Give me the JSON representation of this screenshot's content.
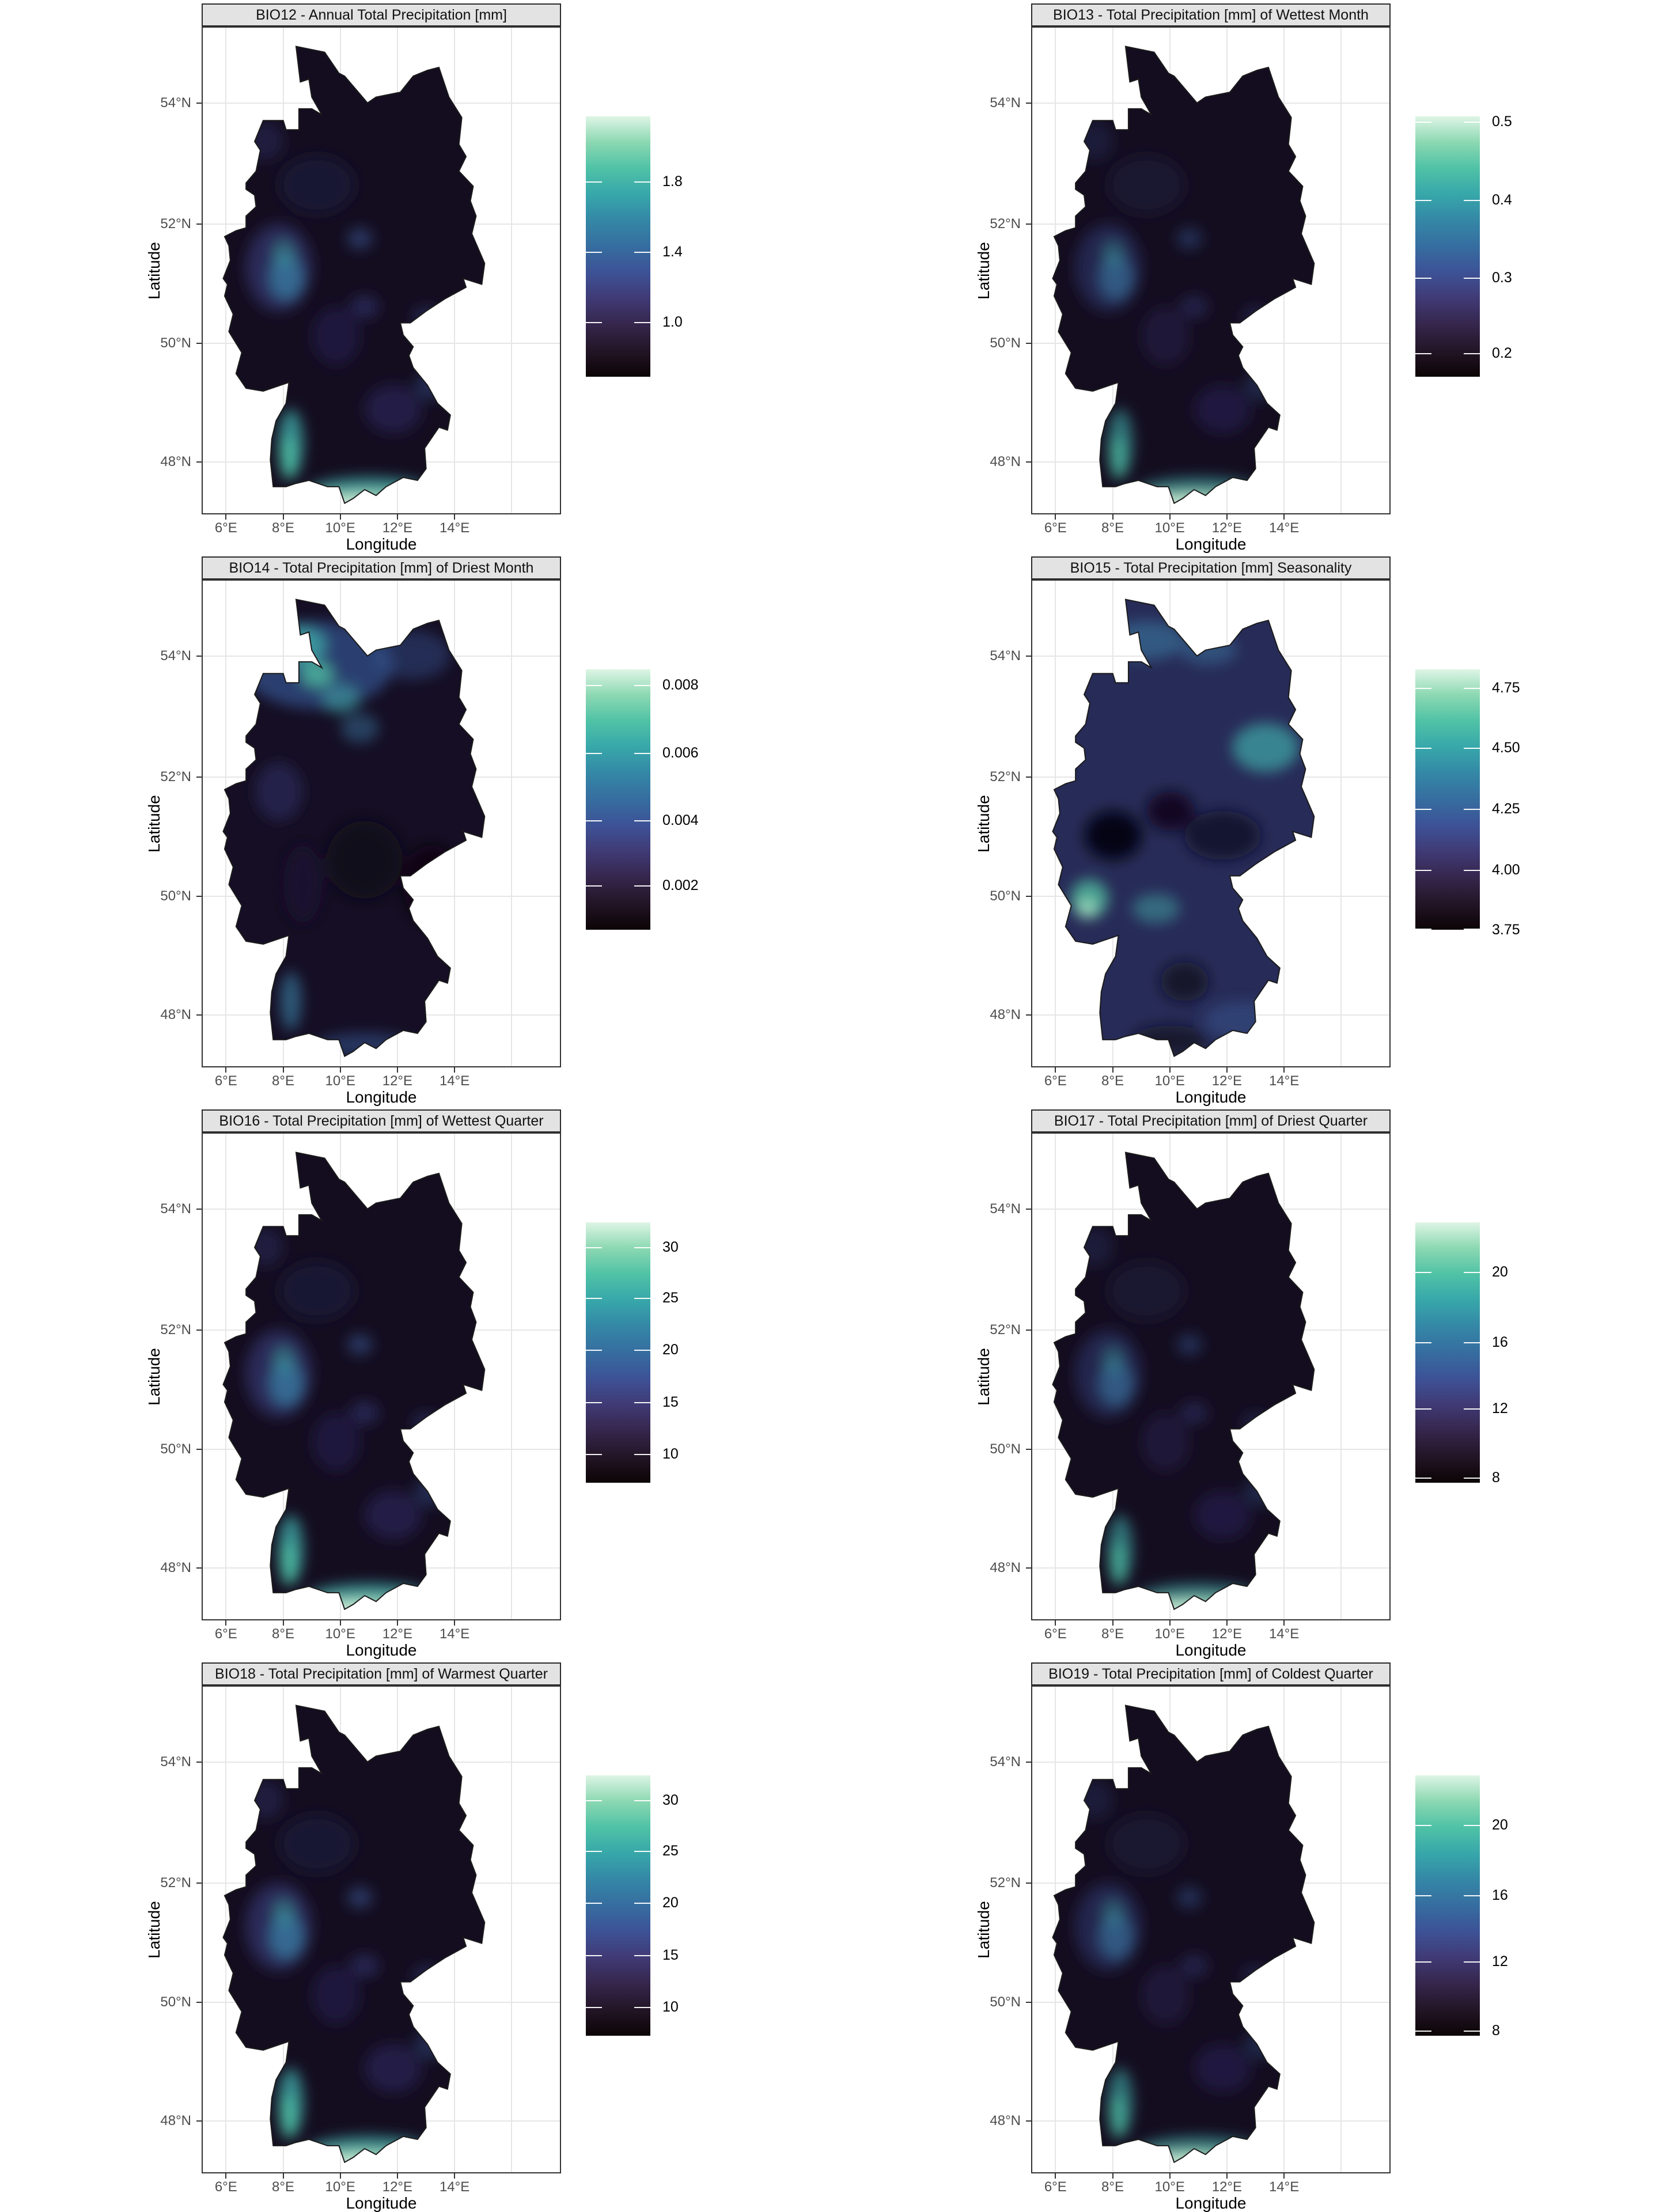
{
  "figure": {
    "background": "#ffffff",
    "strip_background": "#e3e3e3",
    "strip_border": "#2a2a2a",
    "panel_border": "#333333",
    "gridline_color": "#e6e6e6",
    "tick_text_color": "#4d4d4d",
    "axis_title_color": "#000000",
    "country_outline_color": "#1b1b1b",
    "colormap_name": "mako",
    "colormap_stops_top_to_bottom": [
      "#def5e5",
      "#8bd8b2",
      "#4fc2a6",
      "#37a7aa",
      "#3487a6",
      "#366da0",
      "#3d5296",
      "#403a75",
      "#35264c",
      "#231526",
      "#0b0405"
    ]
  },
  "axes": {
    "x": {
      "label": "Longitude",
      "ticks": [
        {
          "label": "6°E",
          "pos": 0.065
        },
        {
          "label": "8°E",
          "pos": 0.225
        },
        {
          "label": "10°E",
          "pos": 0.385
        },
        {
          "label": "12°E",
          "pos": 0.545
        },
        {
          "label": "14°E",
          "pos": 0.705
        }
      ],
      "extra_gridlines": [
        0.865
      ]
    },
    "y": {
      "label": "Latitude",
      "ticks": [
        {
          "label": "54°N",
          "pos": 0.155
        },
        {
          "label": "52°N",
          "pos": 0.405
        },
        {
          "label": "50°N",
          "pos": 0.65
        },
        {
          "label": "48°N",
          "pos": 0.895
        }
      ],
      "extra_gridlines": []
    }
  },
  "panels": [
    {
      "id": "BIO12",
      "title": "BIO12 - Annual Total Precipitation [mm]",
      "pattern": "south",
      "colorbar": {
        "ticks": [
          {
            "label": "1.8",
            "pos": 0.25
          },
          {
            "label": "1.4",
            "pos": 0.52
          },
          {
            "label": "1.0",
            "pos": 0.79
          }
        ]
      }
    },
    {
      "id": "BIO13",
      "title": "BIO13 - Total Precipitation [mm] of Wettest Month",
      "pattern": "south-dim",
      "colorbar": {
        "ticks": [
          {
            "label": "0.5",
            "pos": 0.02
          },
          {
            "label": "0.4",
            "pos": 0.32
          },
          {
            "label": "0.3",
            "pos": 0.62
          },
          {
            "label": "0.2",
            "pos": 0.91
          }
        ]
      }
    },
    {
      "id": "BIO14",
      "title": "BIO14 - Total Precipitation [mm] of Driest Month",
      "pattern": "north",
      "colorbar": {
        "ticks": [
          {
            "label": "0.008",
            "pos": 0.06
          },
          {
            "label": "0.006",
            "pos": 0.32
          },
          {
            "label": "0.004",
            "pos": 0.58
          },
          {
            "label": "0.002",
            "pos": 0.83
          }
        ]
      }
    },
    {
      "id": "BIO15",
      "title": "BIO15 - Total Precipitation [mm] Seasonality",
      "pattern": "season",
      "colorbar": {
        "ticks": [
          {
            "label": "4.75",
            "pos": 0.07
          },
          {
            "label": "4.50",
            "pos": 0.3
          },
          {
            "label": "4.25",
            "pos": 0.535
          },
          {
            "label": "4.00",
            "pos": 0.77
          },
          {
            "label": "3.75",
            "pos": 1.0
          }
        ]
      }
    },
    {
      "id": "BIO16",
      "title": "BIO16 - Total Precipitation [mm] of Wettest Quarter",
      "pattern": "south",
      "colorbar": {
        "ticks": [
          {
            "label": "30",
            "pos": 0.095
          },
          {
            "label": "25",
            "pos": 0.29
          },
          {
            "label": "20",
            "pos": 0.49
          },
          {
            "label": "15",
            "pos": 0.69
          },
          {
            "label": "10",
            "pos": 0.89
          }
        ]
      }
    },
    {
      "id": "BIO17",
      "title": "BIO17 - Total Precipitation [mm] of Driest Quarter",
      "pattern": "south-dim",
      "colorbar": {
        "ticks": [
          {
            "label": "20",
            "pos": 0.19
          },
          {
            "label": "16",
            "pos": 0.46
          },
          {
            "label": "12",
            "pos": 0.715
          },
          {
            "label": "8",
            "pos": 0.98
          }
        ]
      }
    },
    {
      "id": "BIO18",
      "title": "BIO18 - Total Precipitation [mm] of Warmest Quarter",
      "pattern": "south",
      "colorbar": {
        "ticks": [
          {
            "label": "30",
            "pos": 0.095
          },
          {
            "label": "25",
            "pos": 0.29
          },
          {
            "label": "20",
            "pos": 0.49
          },
          {
            "label": "15",
            "pos": 0.69
          },
          {
            "label": "10",
            "pos": 0.89
          }
        ]
      }
    },
    {
      "id": "BIO19",
      "title": "BIO19 - Total Precipitation [mm] of Coldest Quarter",
      "pattern": "south-dim",
      "colorbar": {
        "ticks": [
          {
            "label": "20",
            "pos": 0.19
          },
          {
            "label": "16",
            "pos": 0.46
          },
          {
            "label": "12",
            "pos": 0.715
          },
          {
            "label": "8",
            "pos": 0.98
          }
        ]
      }
    }
  ]
}
